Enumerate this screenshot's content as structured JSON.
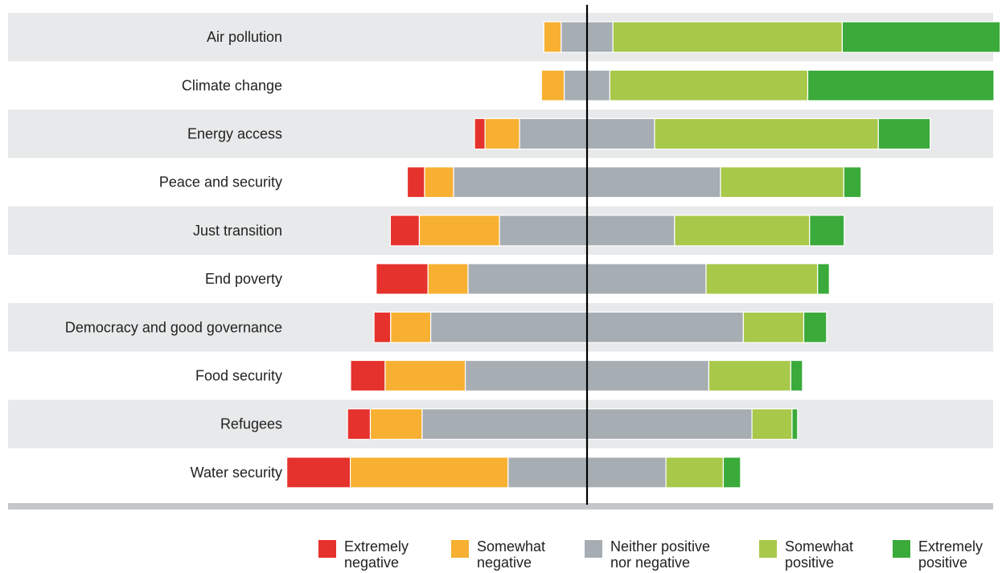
{
  "chart_data": {
    "type": "bar",
    "subtype": "diverging-stacked-horizontal",
    "unit": "",
    "x_range": [
      -50,
      70
    ],
    "grid": false,
    "legend_position": "bottom",
    "categories": [
      "Air pollution",
      "Climate change",
      "Energy access",
      "Peace and security",
      "Just transition",
      "End poverty",
      "Democracy and good governance",
      "Food security",
      "Refugees",
      "Water security"
    ],
    "series": [
      {
        "name": "Extremely negative",
        "color": "#e5322d",
        "values": [
          0,
          0,
          1.7,
          2.8,
          4.7,
          8.4,
          2.7,
          5.6,
          3.7,
          10.3
        ]
      },
      {
        "name": "Somewhat negative",
        "color": "#f7b032",
        "values": [
          2.8,
          3.7,
          5.6,
          4.7,
          13.0,
          6.5,
          6.5,
          13.0,
          8.4,
          25.6
        ]
      },
      {
        "name": "Neither positive nor negative",
        "color": "#a6adb3",
        "values": [
          8.4,
          7.4,
          21.9,
          43.3,
          28.4,
          38.6,
          50.7,
          39.5,
          53.5,
          25.6
        ]
      },
      {
        "name": "Somewhat positive",
        "color": "#a8c84a",
        "values": [
          37.2,
          32.1,
          36.3,
          20.0,
          21.9,
          18.1,
          9.8,
          13.3,
          6.5,
          9.3
        ]
      },
      {
        "name": "Extremely positive",
        "color": "#3aaa3a",
        "values": [
          25.6,
          30.2,
          8.4,
          2.8,
          5.6,
          1.9,
          3.7,
          1.9,
          0.9,
          2.8
        ]
      }
    ]
  },
  "legend": {
    "items": [
      {
        "line1": "Extremely",
        "line2": "negative",
        "color": "#e5322d"
      },
      {
        "line1": "Somewhat",
        "line2": "negative",
        "color": "#f7b032"
      },
      {
        "line1": "Neither positive",
        "line2": "nor negative",
        "color": "#a6adb3"
      },
      {
        "line1": "Somewhat",
        "line2": "positive",
        "color": "#a8c84a"
      },
      {
        "line1": "Extremely",
        "line2": "positive",
        "color": "#3aaa3a"
      }
    ]
  },
  "style": {
    "band_color": "#e8e9ea",
    "baseline_color": "#c4c7ca",
    "center_line_color": "#000000",
    "label_color": "#222222"
  }
}
